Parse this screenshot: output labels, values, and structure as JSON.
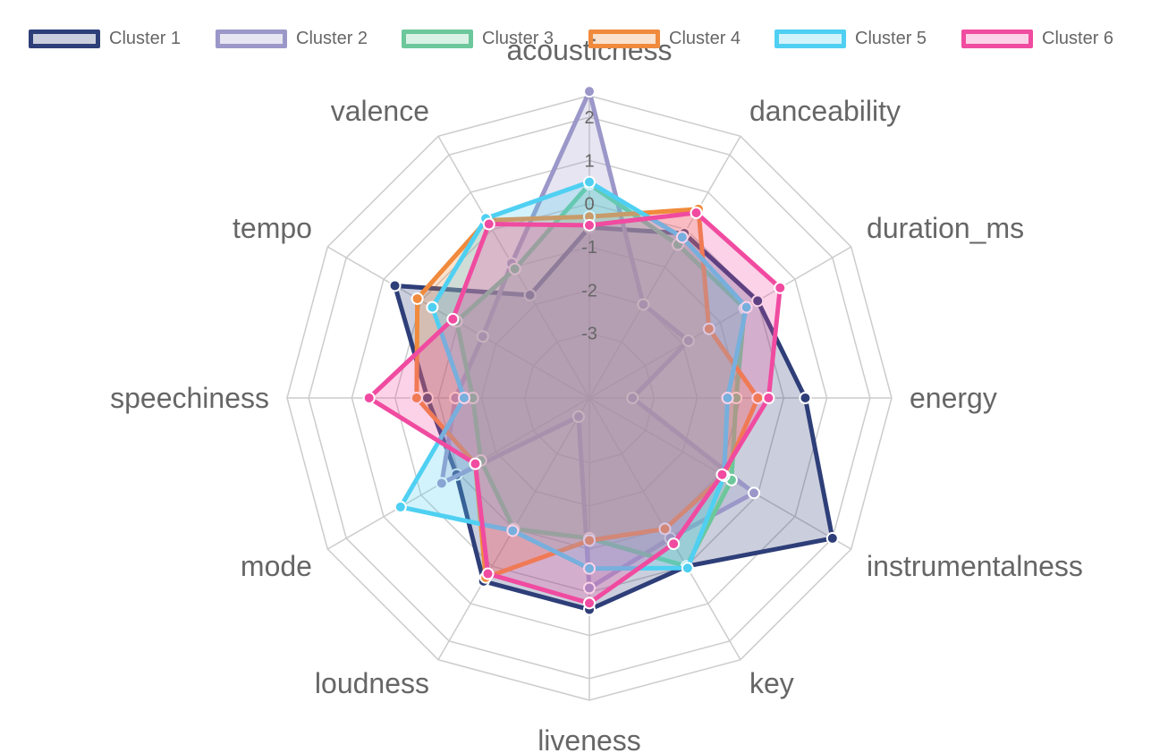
{
  "chart_data": {
    "type": "radar",
    "axes": [
      "acousticness",
      "danceability",
      "duration_ms",
      "energy",
      "instrumentalness",
      "key",
      "liveness",
      "loudness",
      "mode",
      "speechiness",
      "tempo",
      "valence"
    ],
    "r_range": [
      -4.5,
      2.5
    ],
    "ticks": [
      -3,
      -2,
      -1,
      0,
      1,
      2
    ],
    "tick_labels": [
      "-3",
      "-2",
      "-1",
      "0",
      "1",
      "2"
    ],
    "grid": true,
    "legend_position": "top",
    "series": [
      {
        "name": "Cluster 1",
        "color": "#2e3e78",
        "fill": "rgba(46,62,120,0.25)",
        "values": [
          -0.55,
          -0.1,
          0.0,
          0.5,
          2.0,
          0.0,
          0.4,
          0.4,
          -0.95,
          -0.75,
          0.7,
          -1.75
        ]
      },
      {
        "name": "Cluster 2",
        "color": "#9b97c9",
        "fill": "rgba(155,151,201,0.25)",
        "values": [
          2.6,
          -2.0,
          -1.85,
          -3.5,
          -0.1,
          -0.75,
          -0.1,
          -4.0,
          -0.55,
          -1.4,
          -1.65,
          -0.9
        ]
      },
      {
        "name": "Cluster 3",
        "color": "#6cc79b",
        "fill": "rgba(108,199,155,0.25)",
        "values": [
          0.45,
          -0.4,
          -0.35,
          -1.1,
          -0.7,
          0.0,
          -1.25,
          -1.0,
          -1.6,
          -1.8,
          -0.95,
          -1.05
        ]
      },
      {
        "name": "Cluster 4",
        "color": "#f08a3c",
        "fill": "rgba(240,138,60,0.25)",
        "values": [
          -0.3,
          0.55,
          -1.3,
          -0.6,
          -0.9,
          -1.0,
          -1.2,
          0.3,
          -1.45,
          -0.5,
          0.1,
          0.25
        ]
      },
      {
        "name": "Cluster 5",
        "color": "#4fd0f2",
        "fill": "rgba(79,208,242,0.25)",
        "values": [
          0.5,
          -0.2,
          -0.3,
          -1.3,
          -0.9,
          0.05,
          -0.55,
          -0.95,
          0.55,
          -1.6,
          -0.3,
          0.3
        ]
      },
      {
        "name": "Cluster 6",
        "color": "#f04ba0",
        "fill": "rgba(240,75,160,0.25)",
        "values": [
          -0.5,
          0.45,
          0.6,
          -0.35,
          -0.95,
          -0.6,
          0.25,
          0.2,
          -1.45,
          0.6,
          -0.85,
          0.15
        ]
      }
    ]
  }
}
